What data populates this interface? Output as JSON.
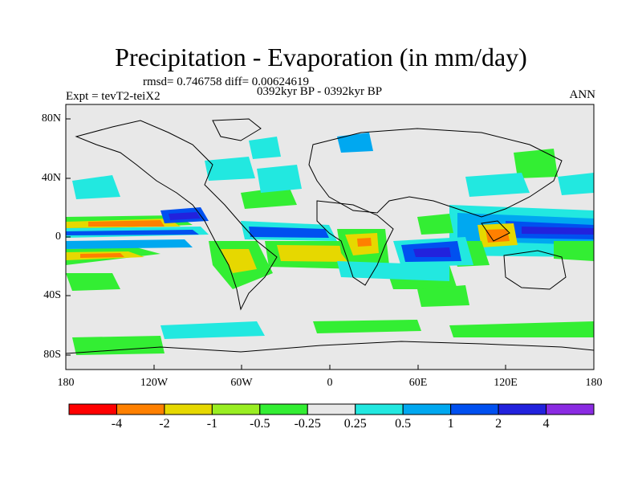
{
  "title": "Precipitation - Evaporation (in mm/day)",
  "stats": "rmsd= 0.746758 diff= 0.00624619",
  "period": "0392kyr BP - 0392kyr BP",
  "experiment": "Expt = tevT2-teiX2",
  "season": "ANN",
  "axes": {
    "y_ticks": [
      "80N",
      "40N",
      "0",
      "40S",
      "80S"
    ],
    "x_ticks": [
      "180",
      "120W",
      "60W",
      "0",
      "60E",
      "120E",
      "180"
    ]
  },
  "colorbar": {
    "labels": [
      "-4",
      "-2",
      "-1",
      "-0.5",
      "-0.25",
      "0.25",
      "0.5",
      "1",
      "2",
      "4"
    ],
    "colors": [
      "#ff0000",
      "#ff8000",
      "#e6d800",
      "#99ee22",
      "#33ee33",
      "#e8e8e8",
      "#22e8e0",
      "#00a8f0",
      "#0050f0",
      "#2222dd",
      "#8a2be2"
    ]
  },
  "colors": {
    "land_outline": "#000000",
    "background_field": "#e8e8e8"
  }
}
